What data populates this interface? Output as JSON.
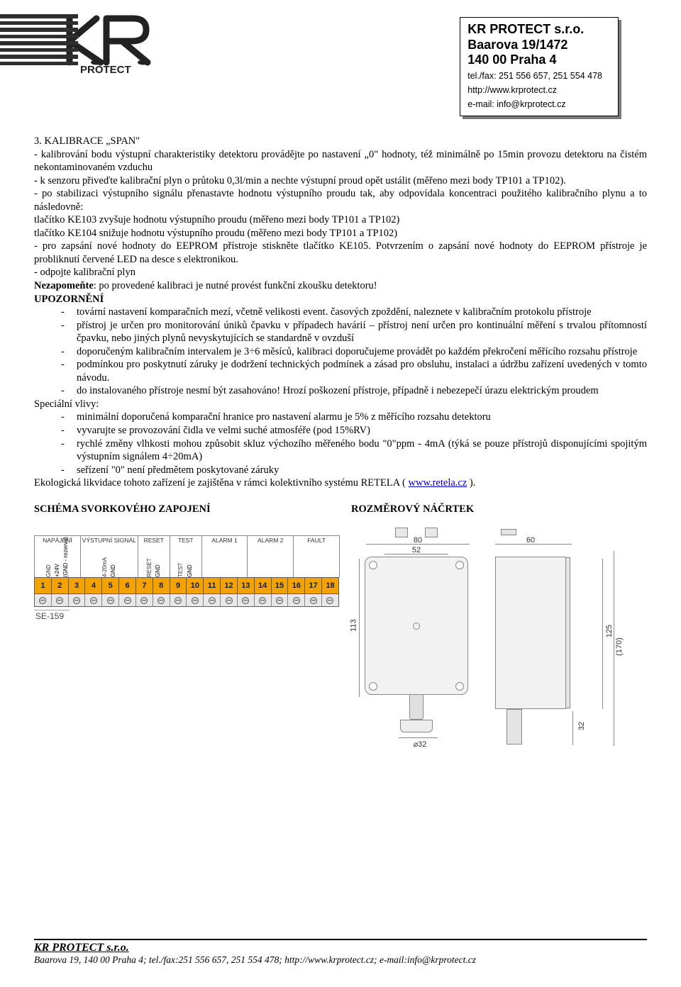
{
  "company": {
    "name_l1": "KR PROTECT s.r.o.",
    "name_l2": "Baarova 19/1472",
    "name_l3": "140 00 Praha 4",
    "tel": "tel./fax: 251 556 657, 251 554 478",
    "web": "http://www.krprotect.cz",
    "email": "e-mail: info@krprotect.cz"
  },
  "section3": {
    "title": "3. KALIBRACE „SPAN\"",
    "p1": "- kalibrování bodu výstupní charakteristiky detektoru provádějte po nastavení „0\" hodnoty, též minimálně po 15min provozu detektoru na čistém nekontaminovaném vzduchu",
    "p2": "- k senzoru přiveďte kalibrační plyn o průtoku 0,3l/min a nechte výstupní proud opět ustálit (měřeno mezi body TP101 a TP102).",
    "p3": "- po stabilizaci výstupního signálu přenastavte hodnotu výstupního proudu tak, aby odpovídala koncentraci použitého kalibračního plynu a to následovně:",
    "p4": "tlačítko KE103 zvyšuje hodnotu výstupního proudu (měřeno mezi body TP101 a TP102)",
    "p5": "tlačítko KE104 snižuje hodnotu výstupního proudu (měřeno mezi body TP101 a TP102)",
    "p6": "- pro zapsání nové hodnoty do EEPROM přístroje stiskněte tlačítko KE105. Potvrzením o zapsání nové hodnoty do EEPROM přístroje je probliknutí červené LED na desce s elektronikou.",
    "p7": "- odpojte kalibrační plyn",
    "p8a": "Nezapomeňte",
    "p8b": ": po provedené kalibraci je nutné provést funkční zkoušku detektoru!"
  },
  "upozorneni": {
    "title": "UPOZORNĚNÍ",
    "items": [
      "tovární nastavení komparačních mezí, včetně velikosti event. časových zpoždění, naleznete v kalibračním protokolu přístroje",
      "přístroj je určen pro monitorování úniků čpavku v případech havárií – přístroj není určen pro kontinuální měření s trvalou přítomností čpavku, nebo jiných plynů nevyskytujících se standardně v ovzduší",
      "doporučeným kalibračním intervalem je 3÷6 měsíců, kalibraci doporučujeme provádět po každém překročení měřícího rozsahu přístroje",
      "podmínkou pro poskytnutí záruky je dodržení technických podmínek a zásad pro obsluhu, instalaci a údržbu zařízení uvedených v tomto návodu.",
      " do instalovaného přístroje nesmí být zasahováno! Hrozí poškození přístroje, případně i nebezepečí úrazu elektrickým proudem"
    ],
    "special_title": "Speciální vlivy:",
    "special_items": [
      "minimální doporučená komparační hranice pro nastavení alarmu je 5% z měřícího rozsahu detektoru",
      "vyvarujte se provozování čidla  ve velmi suché atmosféře (pod 15%RV)",
      "rychlé změny vlhkosti mohou způsobit skluz výchozího měřeného bodu \"0\"ppm - 4mA (týká se pouze přístrojů disponujícími spojitým výstupním signálem 4÷20mA)",
      "seřízení \"0\" není předmětem poskytované záruky"
    ],
    "eco_text_1": "Ekologická likvidace tohoto zařízení je zajištěna v rámci kolektivního systému RETELA ( ",
    "eco_link": "www.retela.cz",
    "eco_text_2": " )."
  },
  "schema": {
    "left_title": "SCHÉMA SVORKOVÉHO ZAPOJENÍ",
    "right_title": "ROZMĚROVÝ NÁČRTEK"
  },
  "terminal": {
    "groups": [
      {
        "top": "NAPÁJENÍ",
        "pins": [
          "GND",
          "+24V",
          "(GND - rezerva)"
        ]
      },
      {
        "top": "VÝSTUPNÍ SIGNÁL",
        "pins": [
          "4-20mA",
          "GND"
        ]
      },
      {
        "top": "RESET",
        "pins": [
          "RESET",
          "GND"
        ]
      },
      {
        "top": "TEST",
        "pins": [
          "TEST",
          "GND"
        ]
      },
      {
        "top": "ALARM 1",
        "pins": [
          "",
          "",
          ""
        ]
      },
      {
        "top": "ALARM 2",
        "pins": [
          "",
          "",
          ""
        ]
      },
      {
        "top": "FAULT",
        "pins": [
          "",
          "",
          ""
        ]
      }
    ],
    "numbers": [
      "1",
      "2",
      "3",
      "4",
      "5",
      "6",
      "7",
      "8",
      "9",
      "10",
      "11",
      "12",
      "13",
      "14",
      "15",
      "16",
      "17",
      "18"
    ],
    "model": "SE-159",
    "colors": {
      "strip": "#f3a200",
      "border": "#5b5b5b",
      "num": "#102040"
    }
  },
  "dimensions": {
    "top_outer": "80",
    "top_inner": "52",
    "side_width": "60",
    "front_height": "113",
    "side_height": "125",
    "side_total": "(170)",
    "side_gland": "32",
    "sensor_dia": "⌀32"
  },
  "footer": {
    "name": "KR PROTECT s.r.o.",
    "addr": "Baarova 19, 140 00 Praha 4; tel./fax:251 556 657, 251 554 478; http://www.krprotect.cz; e-mail:info@krprotect.cz"
  }
}
